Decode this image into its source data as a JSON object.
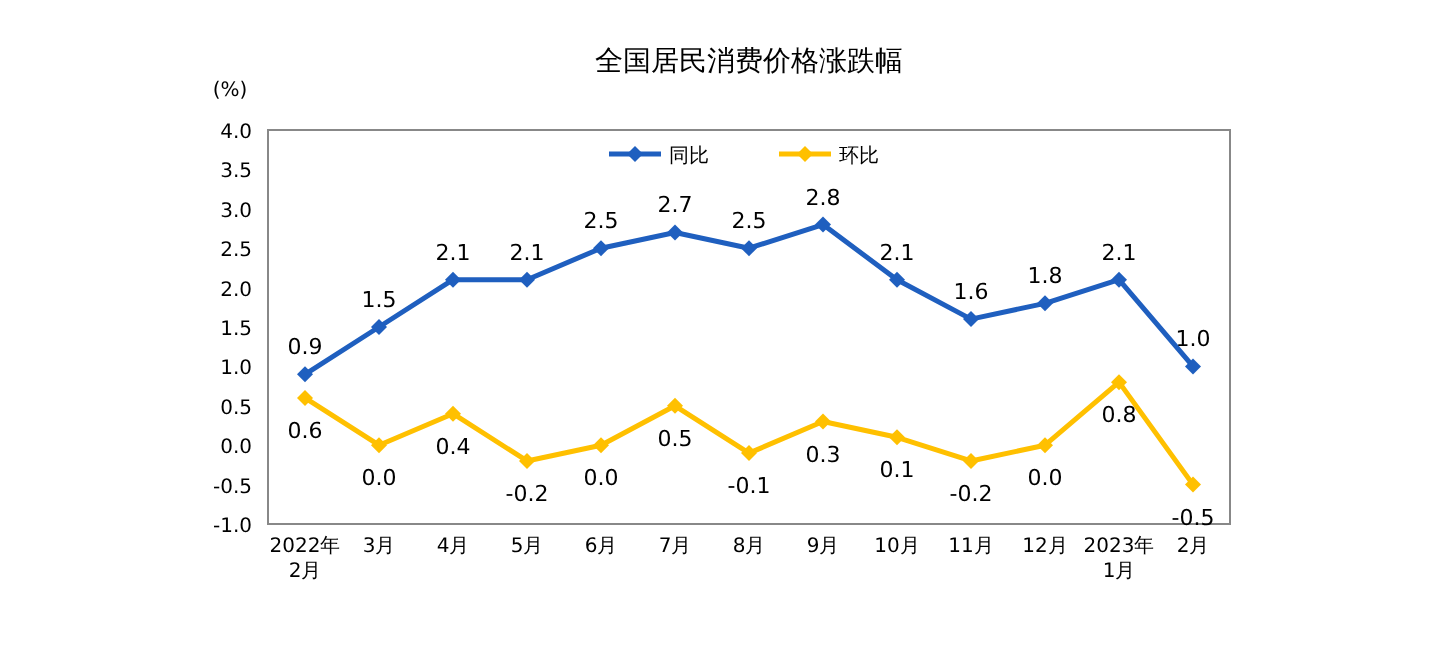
{
  "chart_data": {
    "type": "line",
    "title": "全国居民消费价格涨跌幅",
    "ylabel": "(%)",
    "categories": [
      "2022年\n2月",
      "3月",
      "4月",
      "5月",
      "6月",
      "7月",
      "8月",
      "9月",
      "10月",
      "11月",
      "12月",
      "2023年\n1月",
      "2月"
    ],
    "series": [
      {
        "name": "同比",
        "color": "#1f5fbf",
        "values": [
          0.9,
          1.5,
          2.1,
          2.1,
          2.5,
          2.7,
          2.5,
          2.8,
          2.1,
          1.6,
          1.8,
          2.1,
          1.0
        ],
        "value_labels": [
          "0.9",
          "1.5",
          "2.1",
          "2.1",
          "2.5",
          "2.7",
          "2.5",
          "2.8",
          "2.1",
          "1.6",
          "1.8",
          "2.1",
          "1.0"
        ]
      },
      {
        "name": "环比",
        "color": "#ffc000",
        "values": [
          0.6,
          0.0,
          0.4,
          -0.2,
          0.0,
          0.5,
          -0.1,
          0.3,
          0.1,
          -0.2,
          0.0,
          0.8,
          -0.5
        ],
        "value_labels": [
          "0.6",
          "0.0",
          "0.4",
          "-0.2",
          "0.0",
          "0.5",
          "-0.1",
          "0.3",
          "0.1",
          "-0.2",
          "0.0",
          "0.8",
          "-0.5"
        ]
      }
    ],
    "ylim": [
      -1,
      4
    ],
    "yticks": [
      {
        "value": -1,
        "label": "-1.0"
      },
      {
        "value": -0.5,
        "label": "-0.5"
      },
      {
        "value": 0,
        "label": "0.0"
      },
      {
        "value": 0.5,
        "label": "0.5"
      },
      {
        "value": 1,
        "label": "1.0"
      },
      {
        "value": 1.5,
        "label": "1.5"
      },
      {
        "value": 2,
        "label": "2.0"
      },
      {
        "value": 2.5,
        "label": "2.5"
      },
      {
        "value": 3,
        "label": "3.0"
      },
      {
        "value": 3.5,
        "label": "3.5"
      },
      {
        "value": 4,
        "label": "4.0"
      }
    ],
    "grid": false,
    "legend": "top",
    "marker": "diamond",
    "line_style": "solid"
  }
}
